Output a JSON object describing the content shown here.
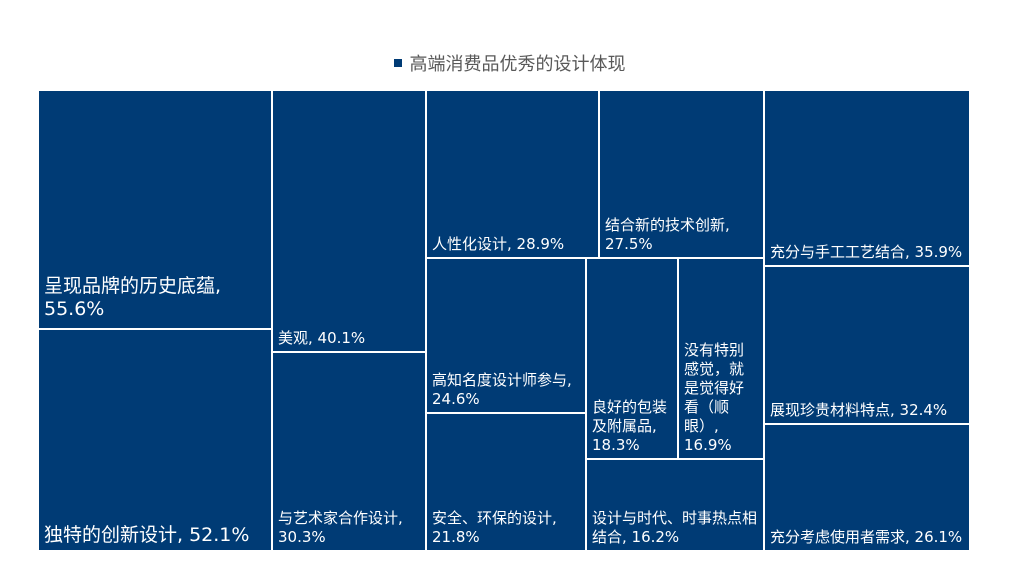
{
  "chart_data": {
    "type": "treemap",
    "title": "",
    "legend": {
      "position": "top",
      "series": "高端消费品优秀的设计体现"
    },
    "colors": {
      "fill": "#003b75",
      "border": "#ffffff"
    },
    "items": [
      {
        "name": "呈现品牌的历史底蕴",
        "value": 55.6,
        "label": "呈现品牌的历史底蕴, 55.6%"
      },
      {
        "name": "独特的创新设计",
        "value": 52.1,
        "label": "独特的创新设计, 52.1%"
      },
      {
        "name": "美观",
        "value": 40.1,
        "label": "美观, 40.1%"
      },
      {
        "name": "与艺术家合作设计",
        "value": 30.3,
        "label": "与艺术家合作设计, 30.3%"
      },
      {
        "name": "人性化设计",
        "value": 28.9,
        "label": "人性化设计, 28.9%"
      },
      {
        "name": "结合新的技术创新",
        "value": 27.5,
        "label": "结合新的技术创新, 27.5%"
      },
      {
        "name": "高知名度设计师参与",
        "value": 24.6,
        "label": "高知名度设计师参与, 24.6%"
      },
      {
        "name": "安全、环保的设计",
        "value": 21.8,
        "label": "安全、环保的设计, 21.8%"
      },
      {
        "name": "良好的包装及附属品",
        "value": 18.3,
        "label": "良好的包装及附属品, 18.3%"
      },
      {
        "name": "没有特别感觉，就是觉得好看（顺眼）",
        "value": 16.9,
        "label": "没有特别感觉，就是觉得好看（顺眼）, 16.9%"
      },
      {
        "name": "设计与时代、时事热点相结合",
        "value": 16.2,
        "label": "设计与时代、时事热点相结合, 16.2%"
      },
      {
        "name": "充分与手工工艺结合",
        "value": 35.9,
        "label": "充分与手工工艺结合, 35.9%"
      },
      {
        "name": "展现珍贵材料特点",
        "value": 32.4,
        "label": "展现珍贵材料特点, 32.4%"
      },
      {
        "name": "充分考虑使用者需求",
        "value": 26.1,
        "label": "充分考虑使用者需求, 26.1%"
      }
    ]
  }
}
